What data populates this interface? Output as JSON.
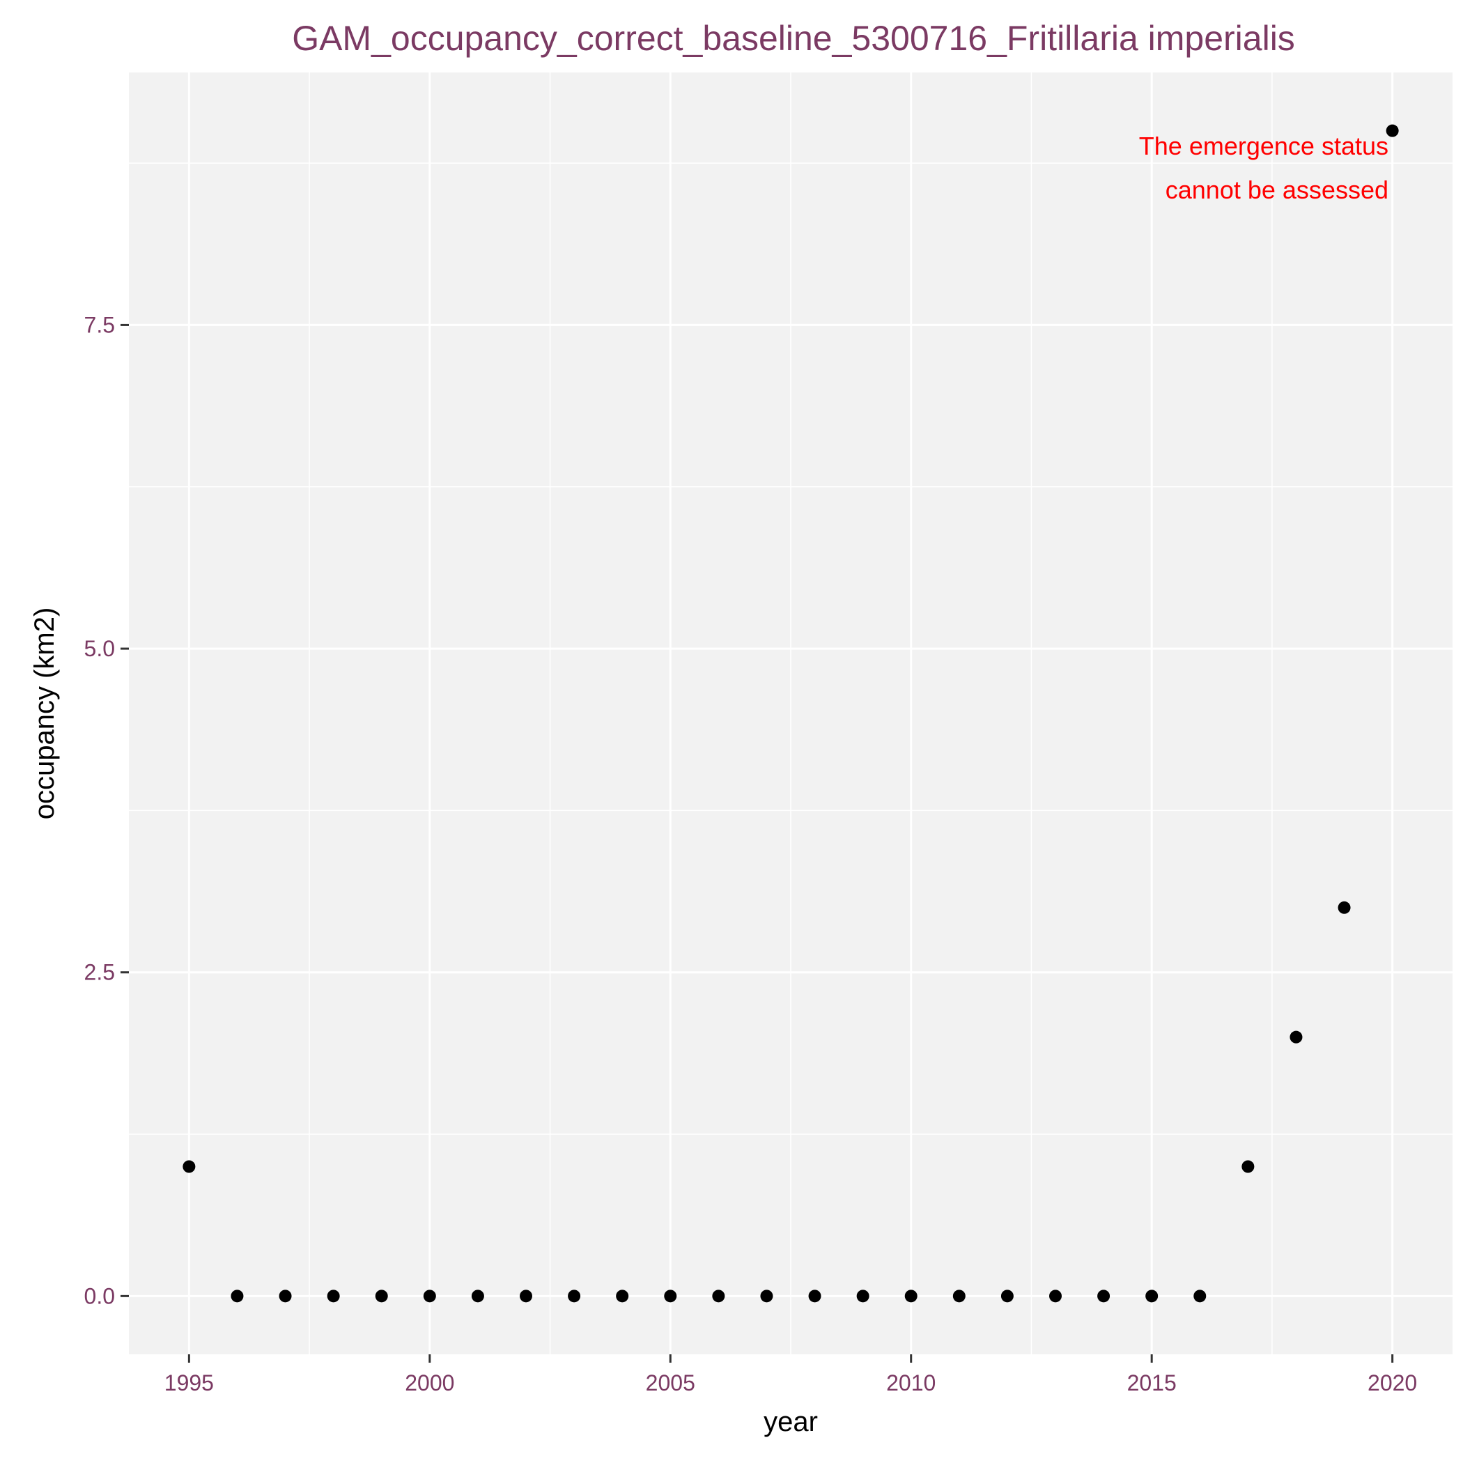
{
  "chart_data": {
    "type": "scatter",
    "title": "GAM_occupancy_correct_baseline_5300716_Fritillaria imperialis",
    "xlabel": "year",
    "ylabel": "occupancy (km2)",
    "xlim": [
      1993.75,
      2021.25
    ],
    "ylim": [
      -0.45,
      9.45
    ],
    "x_ticks": [
      1995,
      2000,
      2005,
      2010,
      2015,
      2020
    ],
    "x_tick_labels": [
      "1995",
      "2000",
      "2005",
      "2010",
      "2015",
      "2020"
    ],
    "y_ticks": [
      0,
      2.5,
      5,
      7.5
    ],
    "y_tick_labels": [
      "0.0",
      "2.5",
      "5.0",
      "7.5"
    ],
    "grid": true,
    "annotation": [
      "The emergence status",
      "cannot be assessed"
    ],
    "series": [
      {
        "x": [
          1995,
          1996,
          1997,
          1998,
          1999,
          2000,
          2001,
          2002,
          2003,
          2004,
          2005,
          2006,
          2007,
          2008,
          2009,
          2010,
          2011,
          2012,
          2013,
          2014,
          2015,
          2016,
          2017,
          2018,
          2019,
          2020
        ],
        "y": [
          1,
          0,
          0,
          0,
          0,
          0,
          0,
          0,
          0,
          0,
          0,
          0,
          0,
          0,
          0,
          0,
          0,
          0,
          0,
          0,
          0,
          0,
          1,
          2,
          3,
          9
        ]
      }
    ],
    "colors": {
      "panel": "#f2f2f2",
      "grid": "#ffffff",
      "point": "#000000",
      "title": "#7b3a63",
      "tick_label": "#7b3a63",
      "annotation": "#ff0000"
    }
  }
}
